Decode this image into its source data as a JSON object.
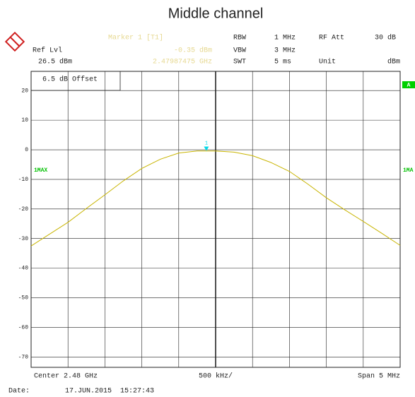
{
  "chart_data": {
    "type": "line",
    "title": "Middle channel",
    "header": {
      "ref_lvl_label": "Ref Lvl",
      "ref_lvl": "26.5 dBm",
      "marker_title": "Marker 1 [T1]",
      "rbw_label": "RBW",
      "rbw": "1 MHz",
      "vbw_label": "VBW",
      "vbw": "3 MHz",
      "swt_label": "SWT",
      "swt": "5 ms",
      "rf_att_label": "RF Att",
      "rf_att": "30 dB",
      "unit_label": "Unit",
      "unit": "dBm"
    },
    "offset_label": "6.5 dB Offset",
    "trace_label_left": "1MAX",
    "trace_label_right": "1MA",
    "status_badge": "A",
    "footer": {
      "center": "Center 2.48 GHz",
      "per_div": "500 kHz/",
      "span": "Span 5 MHz",
      "date_label": "Date:",
      "date": "17.JUN.2015  15:27:43"
    },
    "marker": {
      "name": "1",
      "x": 2479.87475,
      "value": -0.35,
      "value_label": "-0.35 dBm",
      "x_label": "2.47987475 GHz",
      "color": "#00d8e8"
    },
    "series": [
      {
        "name": "1MAX",
        "color": "#c8b400",
        "x": [
          2477.5,
          2477.75,
          2478,
          2478.25,
          2478.5,
          2478.75,
          2479,
          2479.25,
          2479.5,
          2479.75,
          2480,
          2480.25,
          2480.5,
          2480.75,
          2481,
          2481.25,
          2481.5,
          2481.75,
          2482,
          2482.25,
          2482.5
        ],
        "values": [
          -32.5,
          -28.5,
          -24.5,
          -19.8,
          -15.2,
          -10.5,
          -6.3,
          -3.2,
          -1.1,
          -0.4,
          -0.4,
          -0.8,
          -2.0,
          -4.3,
          -7.3,
          -11.6,
          -16.2,
          -20.3,
          -24.2,
          -28.2,
          -32.3
        ]
      }
    ],
    "xlim": [
      2477.5,
      2482.5
    ],
    "ylim": [
      -73.5,
      26.5
    ],
    "yticks": [
      20,
      10,
      0,
      -10,
      -20,
      -30,
      -40,
      -50,
      -60,
      -70
    ],
    "grid": true
  }
}
